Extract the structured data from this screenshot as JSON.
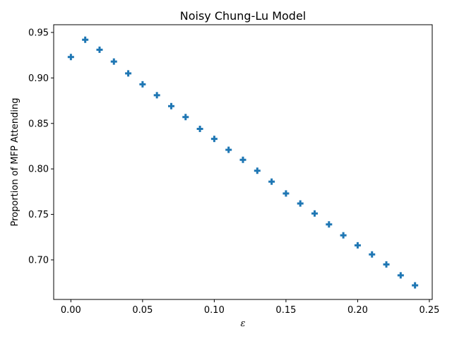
{
  "chart_data": {
    "type": "scatter",
    "title": "Noisy Chung-Lu Model",
    "xlabel": "ε",
    "ylabel": "Proportion of MFP Attending",
    "xlim": [
      -0.012,
      0.252
    ],
    "ylim": [
      0.6565,
      0.9585
    ],
    "xticks": [
      0.0,
      0.05,
      0.1,
      0.15,
      0.2,
      0.25
    ],
    "xtick_labels": [
      "0.00",
      "0.05",
      "0.10",
      "0.15",
      "0.20",
      "0.25"
    ],
    "yticks": [
      0.7,
      0.75,
      0.8,
      0.85,
      0.9,
      0.95
    ],
    "ytick_labels": [
      "0.70",
      "0.75",
      "0.80",
      "0.85",
      "0.90",
      "0.95"
    ],
    "grid": false,
    "marker": "plus",
    "color": "#1f77b4",
    "x": [
      0.0,
      0.01,
      0.02,
      0.03,
      0.04,
      0.05,
      0.06,
      0.07,
      0.08,
      0.09,
      0.1,
      0.11,
      0.12,
      0.13,
      0.14,
      0.15,
      0.16,
      0.17,
      0.18,
      0.19,
      0.2,
      0.21,
      0.22,
      0.23,
      0.24
    ],
    "y": [
      0.923,
      0.942,
      0.931,
      0.918,
      0.905,
      0.893,
      0.881,
      0.869,
      0.857,
      0.844,
      0.833,
      0.821,
      0.81,
      0.798,
      0.786,
      0.773,
      0.762,
      0.751,
      0.739,
      0.727,
      0.716,
      0.706,
      0.695,
      0.683,
      0.672
    ]
  }
}
